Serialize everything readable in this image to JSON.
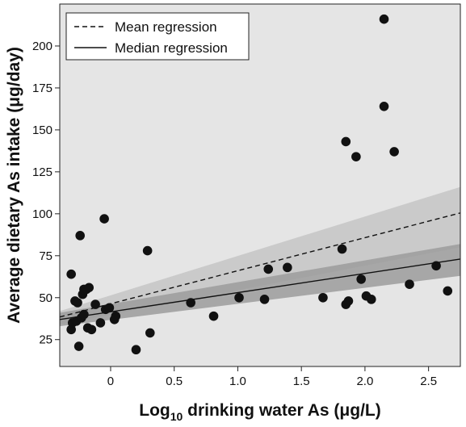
{
  "chart_data": {
    "type": "scatter",
    "xlabel": "Log10 drinking water As (μg/L)",
    "xlabel_parts": {
      "main": "Log",
      "sub": "10",
      "rest": " drinking water As (μg/L)"
    },
    "ylabel": "Average dietary As intake (μg/day)",
    "xlim": [
      -0.4,
      2.75
    ],
    "ylim": [
      9,
      225
    ],
    "xticks": [
      0,
      0.5,
      1.0,
      1.5,
      2.0,
      2.5
    ],
    "xtick_labels": [
      "0",
      "0.5",
      "1.0",
      "1.5",
      "2.0",
      "2.5"
    ],
    "yticks": [
      25,
      50,
      75,
      100,
      125,
      150,
      175,
      200
    ],
    "ytick_labels": [
      "25",
      "50",
      "75",
      "100",
      "125",
      "150",
      "175",
      "200"
    ],
    "grid": false,
    "background": "#e5e5e5",
    "legend_position": "top-left",
    "series": [
      {
        "name": "Mean regression",
        "style": "dashed",
        "line": {
          "x": [
            -0.4,
            2.75
          ],
          "y": [
            38.5,
            100.5
          ]
        },
        "band": {
          "x": [
            -0.4,
            2.75
          ],
          "lower": [
            34,
            80
          ],
          "upper": [
            42,
            116
          ]
        }
      },
      {
        "name": "Median regression",
        "style": "solid",
        "line": {
          "x": [
            -0.4,
            2.75
          ],
          "y": [
            37,
            73
          ]
        },
        "band": {
          "x": [
            -0.4,
            2.75
          ],
          "lower": [
            33,
            63
          ],
          "upper": [
            41,
            82
          ]
        }
      }
    ],
    "points": [
      {
        "x": -0.31,
        "y": 64
      },
      {
        "x": -0.31,
        "y": 31
      },
      {
        "x": -0.3,
        "y": 35
      },
      {
        "x": -0.28,
        "y": 48
      },
      {
        "x": -0.27,
        "y": 36
      },
      {
        "x": -0.26,
        "y": 47
      },
      {
        "x": -0.25,
        "y": 21
      },
      {
        "x": -0.24,
        "y": 87
      },
      {
        "x": -0.23,
        "y": 38
      },
      {
        "x": -0.22,
        "y": 52
      },
      {
        "x": -0.21,
        "y": 40
      },
      {
        "x": -0.21,
        "y": 55
      },
      {
        "x": -0.19,
        "y": 55
      },
      {
        "x": -0.18,
        "y": 32
      },
      {
        "x": -0.17,
        "y": 56
      },
      {
        "x": -0.15,
        "y": 31
      },
      {
        "x": -0.12,
        "y": 46
      },
      {
        "x": -0.08,
        "y": 35
      },
      {
        "x": -0.05,
        "y": 97
      },
      {
        "x": -0.04,
        "y": 43
      },
      {
        "x": -0.01,
        "y": 44
      },
      {
        "x": 0.03,
        "y": 37
      },
      {
        "x": 0.04,
        "y": 39
      },
      {
        "x": 0.2,
        "y": 19
      },
      {
        "x": 0.29,
        "y": 78
      },
      {
        "x": 0.31,
        "y": 29
      },
      {
        "x": 0.63,
        "y": 47
      },
      {
        "x": 0.81,
        "y": 39
      },
      {
        "x": 1.01,
        "y": 50
      },
      {
        "x": 1.21,
        "y": 49
      },
      {
        "x": 1.24,
        "y": 67
      },
      {
        "x": 1.39,
        "y": 68
      },
      {
        "x": 1.67,
        "y": 50
      },
      {
        "x": 1.82,
        "y": 79
      },
      {
        "x": 1.85,
        "y": 143
      },
      {
        "x": 1.85,
        "y": 46
      },
      {
        "x": 1.87,
        "y": 48
      },
      {
        "x": 1.93,
        "y": 134
      },
      {
        "x": 1.97,
        "y": 61
      },
      {
        "x": 2.01,
        "y": 51
      },
      {
        "x": 2.05,
        "y": 49
      },
      {
        "x": 2.15,
        "y": 216
      },
      {
        "x": 2.15,
        "y": 164
      },
      {
        "x": 2.23,
        "y": 137
      },
      {
        "x": 2.35,
        "y": 58
      },
      {
        "x": 2.56,
        "y": 69
      },
      {
        "x": 2.65,
        "y": 54
      }
    ]
  }
}
